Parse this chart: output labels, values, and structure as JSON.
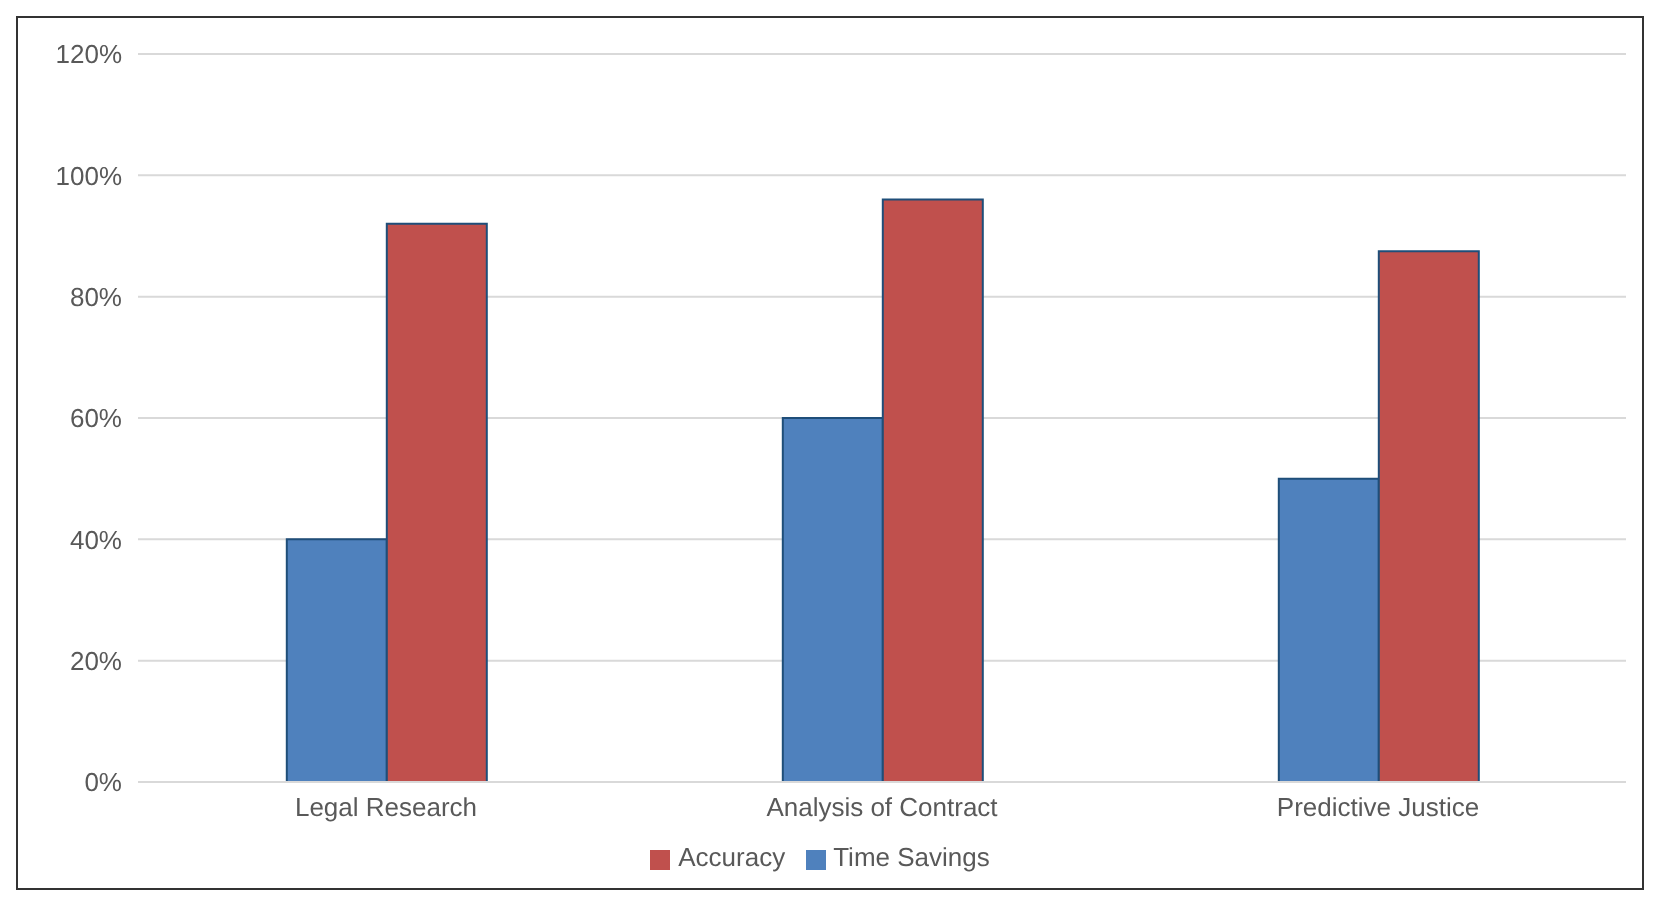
{
  "chart_data": {
    "type": "bar",
    "categories": [
      "Legal Research",
      "Analysis of Contract",
      "Predictive Justice"
    ],
    "series": [
      {
        "name": "Time Savings",
        "color": "#4f81bd",
        "values": [
          40,
          60,
          50
        ]
      },
      {
        "name": "Accuracy",
        "color": "#c0504d",
        "values": [
          92,
          96,
          87.5
        ]
      }
    ],
    "ylim": [
      0,
      120
    ],
    "yticks": [
      {
        "value": 0,
        "label": "0%"
      },
      {
        "value": 20,
        "label": "20%"
      },
      {
        "value": 40,
        "label": "40%"
      },
      {
        "value": 60,
        "label": "60%"
      },
      {
        "value": 80,
        "label": "80%"
      },
      {
        "value": 100,
        "label": "100%"
      },
      {
        "value": 120,
        "label": "120%"
      }
    ],
    "grid": "y",
    "legend": "bottom"
  }
}
